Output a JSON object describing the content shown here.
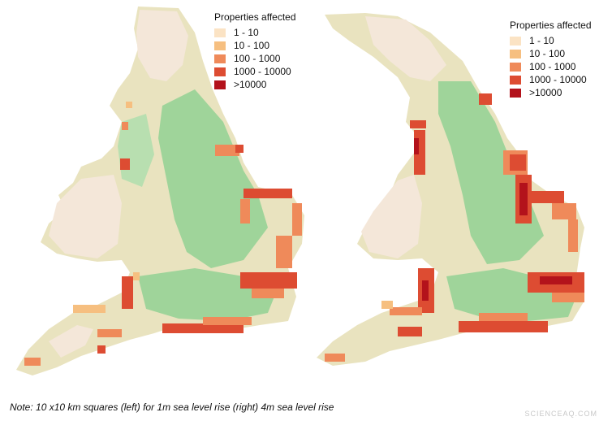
{
  "legend_title": "Properties affected",
  "legend_items": [
    {
      "label": "1 - 10",
      "color": "#fbe3c4"
    },
    {
      "label": "10 - 100",
      "color": "#f6bf80"
    },
    {
      "label": "100 - 1000",
      "color": "#ef8a5a"
    },
    {
      "label": "1000 - 10000",
      "color": "#dd4c32"
    },
    {
      "label": ">10000",
      "color": "#b3121b"
    }
  ],
  "land_colors": {
    "lowland": "#9fd49a",
    "midland": "#e9e3bf",
    "upland": "#f4e7d9",
    "sea": "#ffffff"
  },
  "maps": [
    {
      "scenario": "1m sea level rise"
    },
    {
      "scenario": "4m sea level rise"
    }
  ],
  "note": "Note: 10 x10 km squares (left) for 1m sea level rise (right) 4m sea level rise",
  "watermark": "SCIENCEAQ.COM"
}
